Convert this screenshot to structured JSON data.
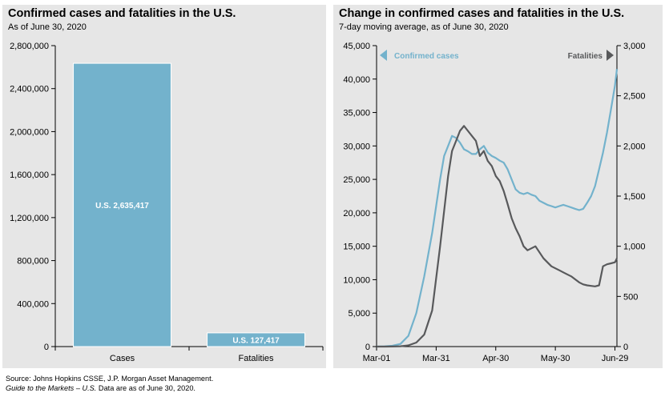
{
  "colors": {
    "cases": "#73b2cc",
    "fatalities": "#58595b",
    "panel_bg": "#e6e6e6"
  },
  "chart_data": [
    {
      "type": "bar",
      "title": "Confirmed cases and fatalities in the U.S.",
      "subtitle": "As of June 30, 2020",
      "categories": [
        "Cases",
        "Fatalities"
      ],
      "values": [
        2635417,
        127417
      ],
      "data_labels": [
        "U.S.   2,635,417",
        "U.S.   127,417"
      ],
      "ylim": [
        0,
        2800000
      ],
      "yticks": [
        0,
        400000,
        800000,
        1200000,
        1600000,
        2000000,
        2400000,
        2800000
      ],
      "ytick_labels": [
        "0",
        "400,000",
        "800,000",
        "1,200,000",
        "1,600,000",
        "2,000,000",
        "2,400,000",
        "2,800,000"
      ],
      "grid": false
    },
    {
      "type": "line",
      "title": "Change in confirmed cases and fatalities in the U.S.",
      "subtitle": "7-day moving average, as of June 30, 2020",
      "x_dates": [
        "2020-03-01",
        "2020-03-05",
        "2020-03-09",
        "2020-03-13",
        "2020-03-17",
        "2020-03-21",
        "2020-03-25",
        "2020-03-29",
        "2020-04-02",
        "2020-04-04",
        "2020-04-06",
        "2020-04-08",
        "2020-04-10",
        "2020-04-12",
        "2020-04-14",
        "2020-04-16",
        "2020-04-18",
        "2020-04-20",
        "2020-04-22",
        "2020-04-24",
        "2020-04-26",
        "2020-04-28",
        "2020-04-30",
        "2020-05-02",
        "2020-05-04",
        "2020-05-06",
        "2020-05-08",
        "2020-05-10",
        "2020-05-12",
        "2020-05-14",
        "2020-05-16",
        "2020-05-18",
        "2020-05-20",
        "2020-05-22",
        "2020-05-24",
        "2020-05-26",
        "2020-05-28",
        "2020-05-30",
        "2020-06-01",
        "2020-06-03",
        "2020-06-05",
        "2020-06-07",
        "2020-06-09",
        "2020-06-11",
        "2020-06-13",
        "2020-06-15",
        "2020-06-17",
        "2020-06-19",
        "2020-06-21",
        "2020-06-23",
        "2020-06-25",
        "2020-06-27",
        "2020-06-29",
        "2020-06-30"
      ],
      "x_tick_labels": [
        "Mar-01",
        "Mar-31",
        "Apr-30",
        "May-30",
        "Jun-29"
      ],
      "x_tick_dates": [
        "2020-03-01",
        "2020-03-31",
        "2020-04-30",
        "2020-05-30",
        "2020-06-29"
      ],
      "series": [
        {
          "name": "Confirmed cases",
          "axis": "left",
          "values": [
            5,
            30,
            120,
            400,
            1600,
            5000,
            10500,
            17000,
            25000,
            28500,
            30000,
            31500,
            31200,
            30500,
            29500,
            29200,
            28800,
            28800,
            29500,
            30000,
            29000,
            28500,
            28200,
            27800,
            27500,
            26500,
            25000,
            23500,
            23000,
            22800,
            23000,
            22700,
            22500,
            21800,
            21500,
            21200,
            21000,
            20800,
            21000,
            21200,
            21000,
            20800,
            20600,
            20400,
            20600,
            21500,
            22500,
            24000,
            26500,
            29000,
            32000,
            35500,
            39000,
            41500
          ]
        },
        {
          "name": "Fatalities",
          "axis": "right",
          "values": [
            0,
            0,
            1,
            3,
            12,
            40,
            120,
            360,
            1000,
            1350,
            1700,
            1950,
            2050,
            2150,
            2200,
            2150,
            2100,
            2050,
            1900,
            1950,
            1850,
            1800,
            1700,
            1650,
            1550,
            1420,
            1280,
            1180,
            1100,
            1000,
            960,
            980,
            1000,
            940,
            880,
            840,
            800,
            780,
            760,
            740,
            720,
            700,
            670,
            640,
            620,
            610,
            605,
            600,
            610,
            800,
            820,
            830,
            840,
            880
          ]
        }
      ],
      "y_left": {
        "lim": [
          0,
          45000
        ],
        "ticks": [
          0,
          5000,
          10000,
          15000,
          20000,
          25000,
          30000,
          35000,
          40000,
          45000
        ],
        "tick_labels": [
          "0",
          "5,000",
          "10,000",
          "15,000",
          "20,000",
          "25,000",
          "30,000",
          "35,000",
          "40,000",
          "45,000"
        ]
      },
      "y_right": {
        "lim": [
          0,
          3000
        ],
        "ticks": [
          0,
          500,
          1000,
          1500,
          2000,
          2500,
          3000
        ],
        "tick_labels": [
          "0",
          "500",
          "1,000",
          "1,500",
          "2,000",
          "2,500",
          "3,000"
        ]
      },
      "legend_labels": [
        "Confirmed cases",
        "Fatalities"
      ],
      "legend_placement": "top",
      "grid": false
    }
  ],
  "footer": {
    "source": "Source: Johns Hopkins CSSE, J.P. Morgan Asset Management.",
    "guide_title": "Guide to the Markets – U.S.",
    "guide_rest": " Data are as of June 30, 2020."
  }
}
